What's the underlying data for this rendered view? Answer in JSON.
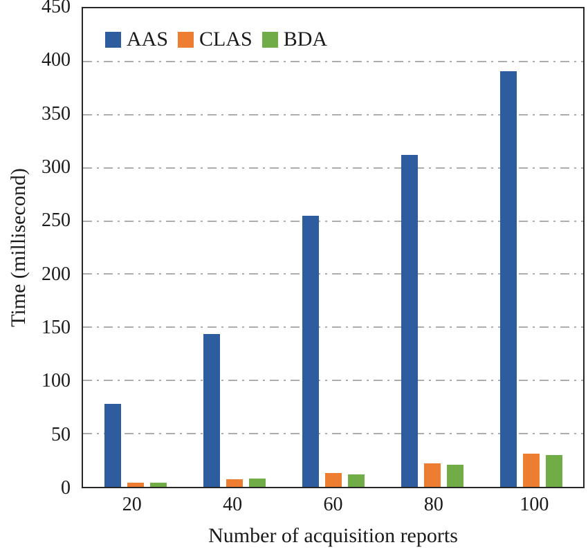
{
  "chart_data": {
    "type": "bar",
    "title": "",
    "xlabel": "Number of acquisition reports",
    "ylabel": "Time (millisecond)",
    "categories": [
      "20",
      "40",
      "60",
      "80",
      "100"
    ],
    "series": [
      {
        "name": "AAS",
        "color": "#2d5d9f",
        "values": [
          78,
          144,
          255,
          312,
          391
        ]
      },
      {
        "name": "CLAS",
        "color": "#ed7d31",
        "values": [
          4,
          7,
          13,
          22,
          31
        ]
      },
      {
        "name": "BDA",
        "color": "#70ad47",
        "values": [
          4,
          8,
          12,
          21,
          30
        ]
      }
    ],
    "ylim": [
      0,
      450
    ],
    "ytick_step": 50,
    "yticks": [
      0,
      50,
      100,
      150,
      200,
      250,
      300,
      350,
      400,
      450
    ],
    "grid": "horizontal dash-dot gray lines",
    "gridline_color": "#adadad",
    "legend_position": "top-left-inside",
    "axis_frame_color": "#262626"
  }
}
